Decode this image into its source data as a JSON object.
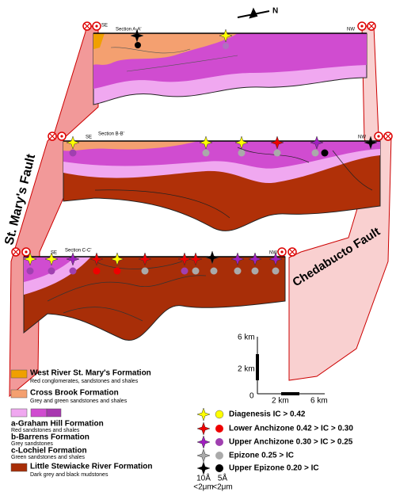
{
  "sections": [
    {
      "label": "Section A-A'",
      "se": "SE",
      "nw": "NW"
    },
    {
      "label": "Section B-B'",
      "se": "SE",
      "nw": "NW"
    },
    {
      "label": "Section C-C'",
      "se": "SE",
      "nw": "NW"
    }
  ],
  "faults": {
    "left": "St. Mary's Fault",
    "right": "Chedabucto Fault"
  },
  "north": "N",
  "scale": {
    "vertical_top": "6 km",
    "vertical_mid": "2 km",
    "origin": "0",
    "horizontal_mid": "2 km",
    "horizontal_end": "6 km"
  },
  "formations": [
    {
      "name": "West River St. Mary's Formation",
      "description": "Red conglomerates, sandstones and shales"
    },
    {
      "name": "Cross Brook Formation",
      "description": "Grey and green sandstones and shales"
    },
    {
      "name": "a-Graham Hill Formation",
      "description": "Red sandstones and shales"
    },
    {
      "name": "b-Barrens Formation",
      "description": "Grey sandstones"
    },
    {
      "name": "c-Lochiel Formation",
      "description": "Green sandstones and shales"
    },
    {
      "name": "Little Stewiacke River Formation",
      "description": "Dark grey and black mudstones"
    }
  ],
  "symbols": [
    {
      "label": "Diagenesis IC > 0.42"
    },
    {
      "label": "Lower Anchizone 0.42 > IC > 0.30"
    },
    {
      "label": "Upper Anchizone 0.30 > IC > 0.25"
    },
    {
      "label": "Epizone 0.25 > IC"
    },
    {
      "label": "Upper Epizone 0.20 > IC"
    }
  ],
  "fractions": [
    {
      "size": "10Å",
      "fraction": "<2μm"
    },
    {
      "size": "5Å",
      "fraction": "<2μm"
    }
  ]
}
